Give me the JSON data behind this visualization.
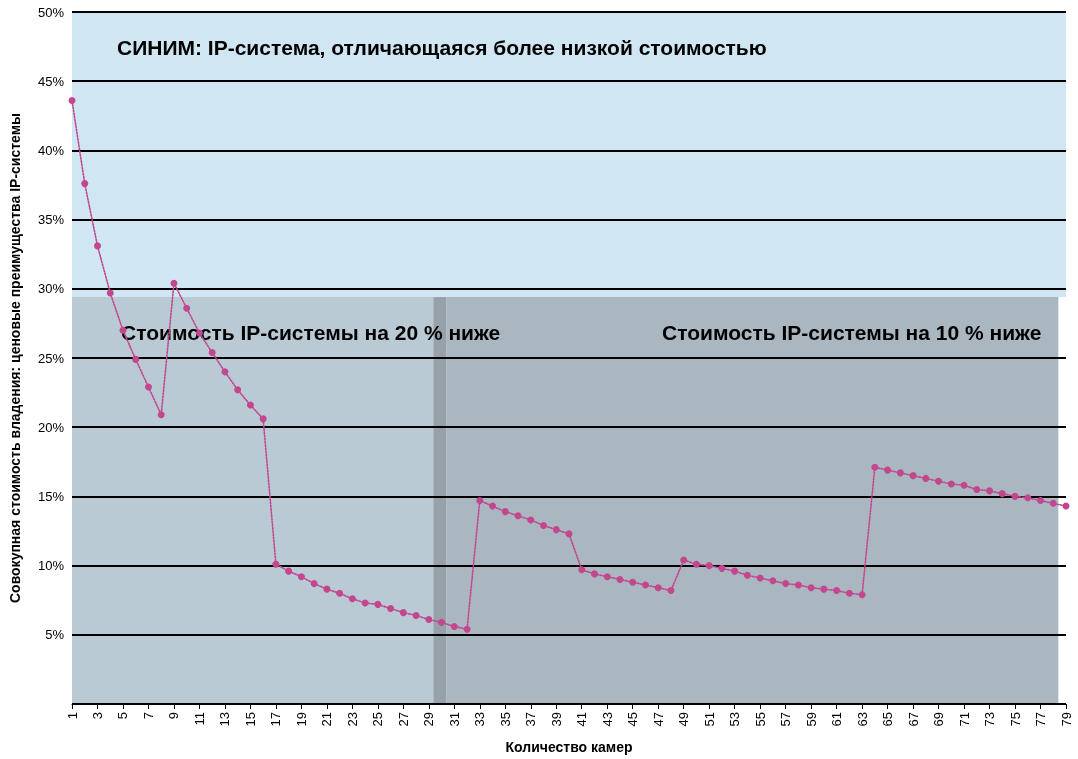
{
  "chart_data": {
    "type": "line",
    "xlabel": "Количество камер",
    "ylabel": "Совокупная стоимость владения: ценовые преимущества IP-системы",
    "x": [
      1,
      2,
      3,
      4,
      5,
      6,
      7,
      8,
      9,
      10,
      11,
      12,
      13,
      14,
      15,
      16,
      17,
      18,
      19,
      20,
      21,
      22,
      23,
      24,
      25,
      26,
      27,
      28,
      29,
      30,
      31,
      32,
      33,
      34,
      35,
      36,
      37,
      38,
      39,
      40,
      41,
      42,
      43,
      44,
      45,
      46,
      47,
      48,
      49,
      50,
      51,
      52,
      53,
      54,
      55,
      56,
      57,
      58,
      59,
      60,
      61,
      62,
      63,
      64,
      65,
      66,
      67,
      68,
      69,
      70,
      71,
      72,
      73,
      74,
      75,
      76,
      77,
      78,
      79
    ],
    "series": [
      {
        "color": "#c2478f",
        "values": [
          43.6,
          37.6,
          33.1,
          29.7,
          27.0,
          24.9,
          22.9,
          20.9,
          30.4,
          28.6,
          26.8,
          25.4,
          24.0,
          22.7,
          21.6,
          20.6,
          10.1,
          9.6,
          9.2,
          8.7,
          8.3,
          8.0,
          7.6,
          7.3,
          7.2,
          6.9,
          6.6,
          6.4,
          6.1,
          5.9,
          5.6,
          5.4,
          14.7,
          14.3,
          13.9,
          13.6,
          13.3,
          12.9,
          12.6,
          12.3,
          9.7,
          9.4,
          9.2,
          9.0,
          8.8,
          8.6,
          8.4,
          8.2,
          10.4,
          10.1,
          10.0,
          9.8,
          9.6,
          9.3,
          9.1,
          8.9,
          8.7,
          8.6,
          8.4,
          8.3,
          8.2,
          8.0,
          7.9,
          17.1,
          16.9,
          16.7,
          16.5,
          16.3,
          16.1,
          15.9,
          15.8,
          15.5,
          15.4,
          15.2,
          15.0,
          14.9,
          14.7,
          14.5,
          14.3
        ]
      }
    ],
    "xlim": [
      1,
      79
    ],
    "xticks": [
      1,
      3,
      5,
      7,
      9,
      11,
      13,
      15,
      17,
      19,
      21,
      23,
      25,
      27,
      29,
      31,
      33,
      35,
      37,
      39,
      41,
      43,
      45,
      47,
      49,
      51,
      53,
      55,
      57,
      59,
      61,
      63,
      65,
      67,
      69,
      71,
      73,
      75,
      77,
      79
    ],
    "ylim": [
      0,
      50
    ],
    "yticks": [
      {
        "value": 0,
        "label": null
      },
      {
        "value": 5,
        "label": "5%"
      },
      {
        "value": 10,
        "label": "10%"
      },
      {
        "value": 15,
        "label": "15%"
      },
      {
        "value": 20,
        "label": "20%"
      },
      {
        "value": 25,
        "label": "25%"
      },
      {
        "value": 30,
        "label": "30%"
      },
      {
        "value": 35,
        "label": "35%"
      },
      {
        "value": 40,
        "label": "40%"
      },
      {
        "value": 45,
        "label": "45%"
      },
      {
        "value": 50,
        "label": "50%"
      }
    ],
    "bands": [
      {
        "axis": "x",
        "from": 1,
        "to": 29.35,
        "label": "Стоимость IP-системы на 20 % ниже",
        "color": "#b9cad4"
      },
      {
        "axis": "x",
        "from": 29.35,
        "to": 30.4,
        "color": "#97a1a9"
      },
      {
        "axis": "x",
        "from": 30.4,
        "to": 78.4,
        "label": "Стоимость IP-системы на 10 % ниже",
        "color": "#aab7c0"
      },
      {
        "axis": "y",
        "from": 29.4,
        "to": 50,
        "label": "СИНИМ: IP-система, отличающаяся более низкой стоимостью",
        "color": "#d1e6f3"
      }
    ],
    "grid": "y",
    "marker": "circle",
    "line_style": "dotted"
  }
}
